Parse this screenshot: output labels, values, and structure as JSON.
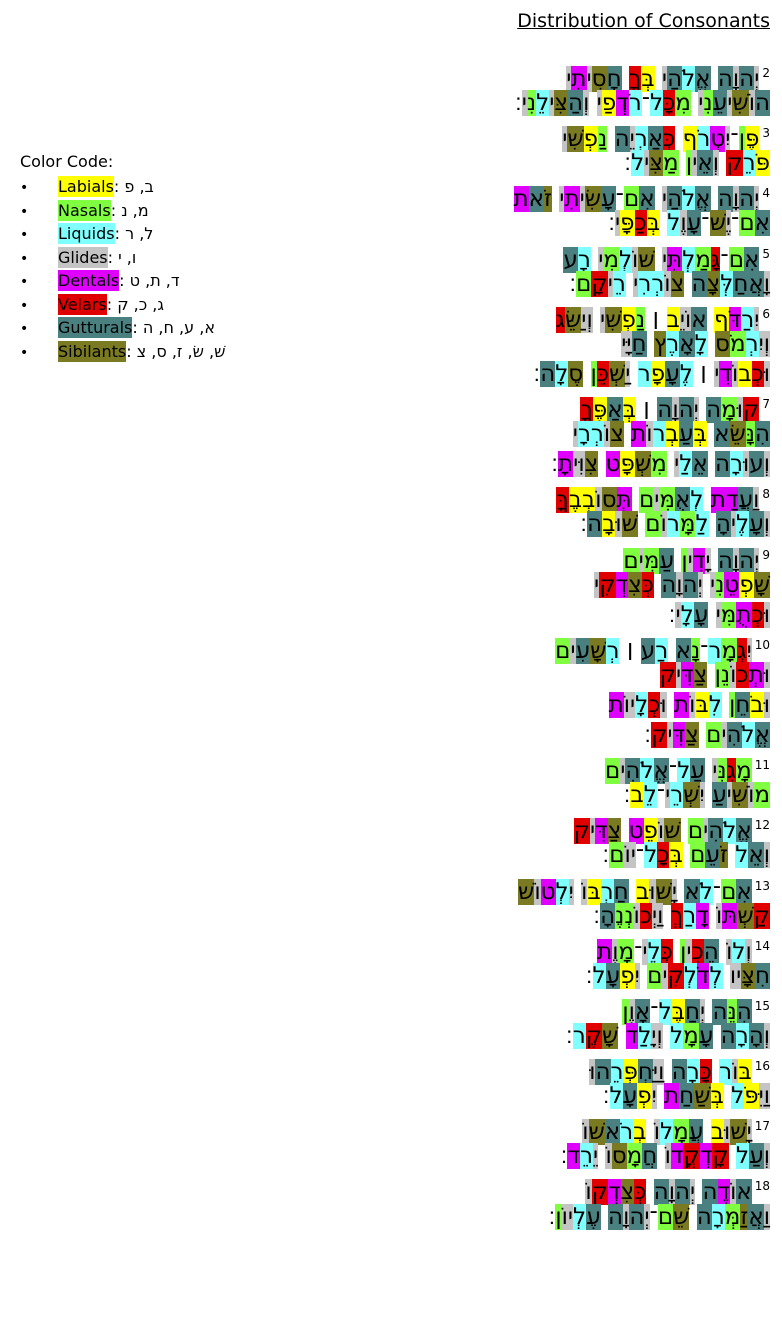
{
  "header": {
    "title": "Distribution of Consonants"
  },
  "color_code": {
    "label": "Color Code:",
    "items": [
      {
        "name": "Labials",
        "letters": ": ב, פ"
      },
      {
        "name": "Nasals",
        "letters": ": מ, נ"
      },
      {
        "name": "Liquids",
        "letters": ": ל, ר"
      },
      {
        "name": "Glides",
        "letters": ": ו, י"
      },
      {
        "name": "Dentals",
        "letters": ": ד, ת, ט"
      },
      {
        "name": "Velars",
        "letters": ": ג, כ, ק"
      },
      {
        "name": "Gutturals",
        "letters": ": א, ע, ח, ה"
      },
      {
        "name": "Sibilants",
        "letters": ": שׁ, שׂ, ז, ס, צ"
      }
    ]
  },
  "verses": [
    {
      "number": "2",
      "lines": [
        "יְהוָה אֱלֹהַי בְּךָ חָסִיתִי",
        "הוֹשִׁיעֵנִי מִכָּל־רֹדְפַי וְהַצִּילֵנִי׃"
      ]
    },
    {
      "number": "3",
      "lines": [
        "פֶּן־יִטְרֹף כְּאַרְיֵה נַפְשִׁי",
        "פֹּרֵק וְאֵין מַצִּיל׃"
      ]
    },
    {
      "number": "4",
      "lines": [
        "יְהוָה אֱלֹהַי אִם־עָשִׂיתִי זֹאת",
        "אִם־יֶשׁ־עָוֶל בְּכַפָּי׃"
      ]
    },
    {
      "number": "5",
      "lines": [
        "אִם־גָּמַלְתִּי שׁוֹלְמִי רָע",
        "וָאֲחַלְּצָה צוֹרְרִי רֵיקָם׃"
      ]
    },
    {
      "number": "6",
      "lines": [
        "יִרַדֹּף אוֹיֵב ׀ נַפְשִׁי וְיַשֵּׂג",
        "וְיִרְמֹס לָאָרֶץ חַיָּי",
        "וּכְבוֹדִי ׀ לֶעָפָר יַשְׁכֵּן סֶלָה׃"
      ]
    },
    {
      "number": "7",
      "lines": [
        "קוּמָה יְהוָה ׀ בְּאַפֶּךָ",
        "הִנָּשֵׂא בְּעַבְרוֹת צוֹרְרָי",
        "וְעוּרָה אֵלַי מִשְׁפָּט צִוִּיתָ׃"
      ]
    },
    {
      "number": "8",
      "lines": [
        "וַעֲדַת לְאֻמִּים תְּסוֹבְבֶךָּ",
        "וְעָלֶיהָ לַמָּרוֹם שׁוּבָה׃"
      ]
    },
    {
      "number": "9",
      "lines": [
        "יְהוָה יָדִין עַמִּים",
        "שָׁפְטֵנִי יְהוָה כְּצִדְקִי",
        "וּכְתֻמִּי עָלָי׃"
      ]
    },
    {
      "number": "10",
      "lines": [
        "יִגְמָר־נָא רַע ׀ רְשָׁעִים",
        "וּתְכוֹנֵן צַדִּיק",
        "וּבֹחֵן לִבּוֹת וּכְלָיוֹת",
        "אֱלֹהִים צַדִּיק׃"
      ]
    },
    {
      "number": "11",
      "lines": [
        "מָגִנִּי עַל־אֱלֹהִים",
        "מוֹשִׁיעַ יִשְׁרֵי־לֵב׃"
      ]
    },
    {
      "number": "12",
      "lines": [
        "אֱלֹהִים שׁוֹפֵט צַדִּיק",
        "וְאֵל זֹעֵם בְּכָל־יוֹם׃"
      ]
    },
    {
      "number": "13",
      "lines": [
        "אִם־לֹא יָשׁוּב חַרְבּוֹ יִלְטוֹשׁ",
        "קַשְׁתּוֹ דָרַךְ וַיְכוֹנְנֶהָ׃"
      ]
    },
    {
      "number": "14",
      "lines": [
        "וְלוֹ הֵכִין כְּלֵי־מָוֶת",
        "חִצָּיו לְדֹלְקִים יִפְעָל׃"
      ]
    },
    {
      "number": "15",
      "lines": [
        "הִנֵּה יְחַבֶּל־אָוֶן",
        "וְהָרָה עָמָל וְיָלַד שָׁקֶר׃"
      ]
    },
    {
      "number": "16",
      "lines": [
        "בּוֹר כָּרָה וַיַּחְפְּרֵהוּ",
        "וַיִּפֹּל בְּשַׁחַת יִפְעָל׃"
      ]
    },
    {
      "number": "17",
      "lines": [
        "יָשׁוּב עֲמָלוֹ בְרֹאשׁוֹ",
        "וְעַל קָדְקֳדוֹ חֲמָסוֹ יֵרֵד׃"
      ]
    },
    {
      "number": "18",
      "lines": [
        "אוֹדֶה יְהוָה כְּצִדְקוֹ",
        "וַאֲזַמְּרָה שֵׁם־יְהוָה עֶלְיוֹן׃"
      ]
    }
  ]
}
